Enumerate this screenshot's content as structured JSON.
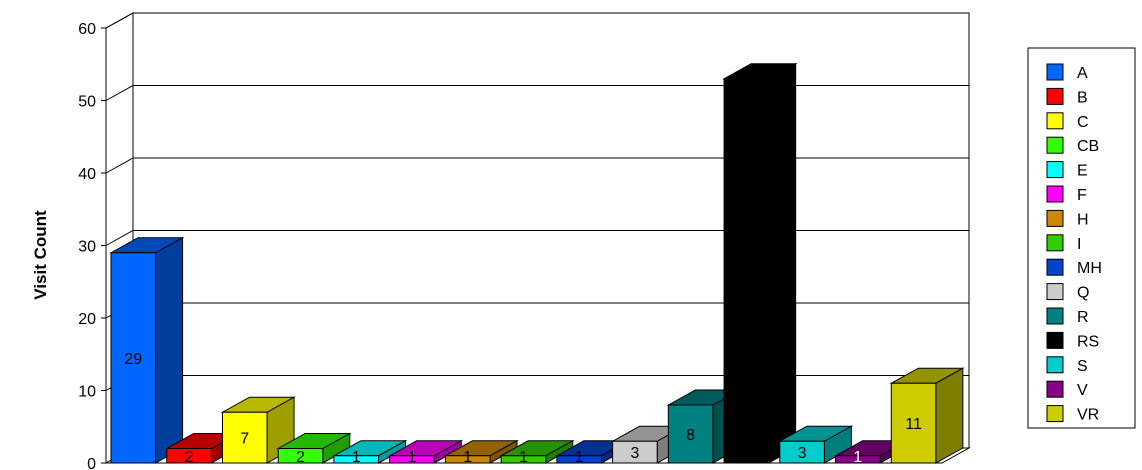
{
  "chart_data": {
    "type": "bar",
    "ylabel": "Visit Count",
    "xlabel": "",
    "ylim": [
      0,
      60
    ],
    "yticks": [
      0,
      10,
      20,
      30,
      40,
      50,
      60
    ],
    "grid": true,
    "legend_position": "right",
    "categories": [
      "A",
      "B",
      "C",
      "CB",
      "E",
      "F",
      "H",
      "I",
      "MH",
      "Q",
      "R",
      "RS",
      "S",
      "V",
      "VR"
    ],
    "values": [
      29,
      2,
      7,
      2,
      1,
      1,
      1,
      1,
      1,
      3,
      8,
      53,
      3,
      1,
      11
    ],
    "data_labels": [
      "29",
      "2",
      "7",
      "2",
      "1",
      "1",
      "1",
      "1",
      "1",
      "3",
      "8",
      "",
      "3",
      "1",
      "11"
    ],
    "colors": [
      "#0066ff",
      "#ff0000",
      "#ffff00",
      "#33ff00",
      "#00ffff",
      "#ff00ff",
      "#cc8800",
      "#33cc00",
      "#0044cc",
      "#cccccc",
      "#008080",
      "#000000",
      "#00cccc",
      "#880088",
      "#cccc00"
    ]
  }
}
